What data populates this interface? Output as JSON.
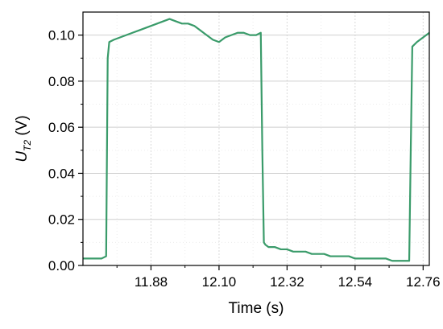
{
  "chart_data": {
    "type": "line",
    "title": "",
    "xlabel": "Time (s)",
    "ylabel": {
      "main": "U",
      "subscript": "T2",
      "unit": " (V)"
    },
    "xlim": [
      11.66,
      12.78
    ],
    "ylim": [
      0.0,
      0.11
    ],
    "x_ticks": [
      11.88,
      12.1,
      12.32,
      12.54,
      12.76
    ],
    "x_tick_labels": [
      "11.88",
      "12.10",
      "12.32",
      "12.54",
      "12.76"
    ],
    "y_ticks": [
      0.0,
      0.02,
      0.04,
      0.06,
      0.08,
      0.1
    ],
    "y_tick_labels": [
      "0.00",
      "0.02",
      "0.04",
      "0.06",
      "0.08",
      "0.10"
    ],
    "grid": true,
    "legend": "none",
    "color": "#3a9b6a",
    "series": [
      {
        "x": [
          11.66,
          11.68,
          11.7,
          11.72,
          11.735,
          11.74,
          11.745,
          11.76,
          11.78,
          11.8,
          11.82,
          11.84,
          11.86,
          11.88,
          11.9,
          11.92,
          11.94,
          11.96,
          11.98,
          12.0,
          12.02,
          12.04,
          12.06,
          12.08,
          12.1,
          12.12,
          12.14,
          12.16,
          12.18,
          12.2,
          12.22,
          12.235,
          12.24,
          12.245,
          12.25,
          12.26,
          12.28,
          12.3,
          12.32,
          12.34,
          12.36,
          12.38,
          12.4,
          12.42,
          12.44,
          12.46,
          12.48,
          12.5,
          12.52,
          12.54,
          12.56,
          12.58,
          12.6,
          12.62,
          12.64,
          12.66,
          12.68,
          12.7,
          12.715,
          12.72,
          12.725,
          12.74,
          12.76,
          12.78
        ],
        "y": [
          0.003,
          0.003,
          0.003,
          0.003,
          0.004,
          0.09,
          0.097,
          0.098,
          0.099,
          0.1,
          0.101,
          0.102,
          0.103,
          0.104,
          0.105,
          0.106,
          0.107,
          0.106,
          0.105,
          0.105,
          0.104,
          0.102,
          0.1,
          0.098,
          0.097,
          0.099,
          0.1,
          0.101,
          0.101,
          0.1,
          0.1,
          0.101,
          0.05,
          0.01,
          0.009,
          0.008,
          0.008,
          0.007,
          0.007,
          0.006,
          0.006,
          0.006,
          0.005,
          0.005,
          0.005,
          0.004,
          0.004,
          0.004,
          0.004,
          0.003,
          0.003,
          0.003,
          0.003,
          0.003,
          0.003,
          0.002,
          0.002,
          0.002,
          0.002,
          0.05,
          0.095,
          0.097,
          0.099,
          0.101
        ]
      }
    ]
  }
}
